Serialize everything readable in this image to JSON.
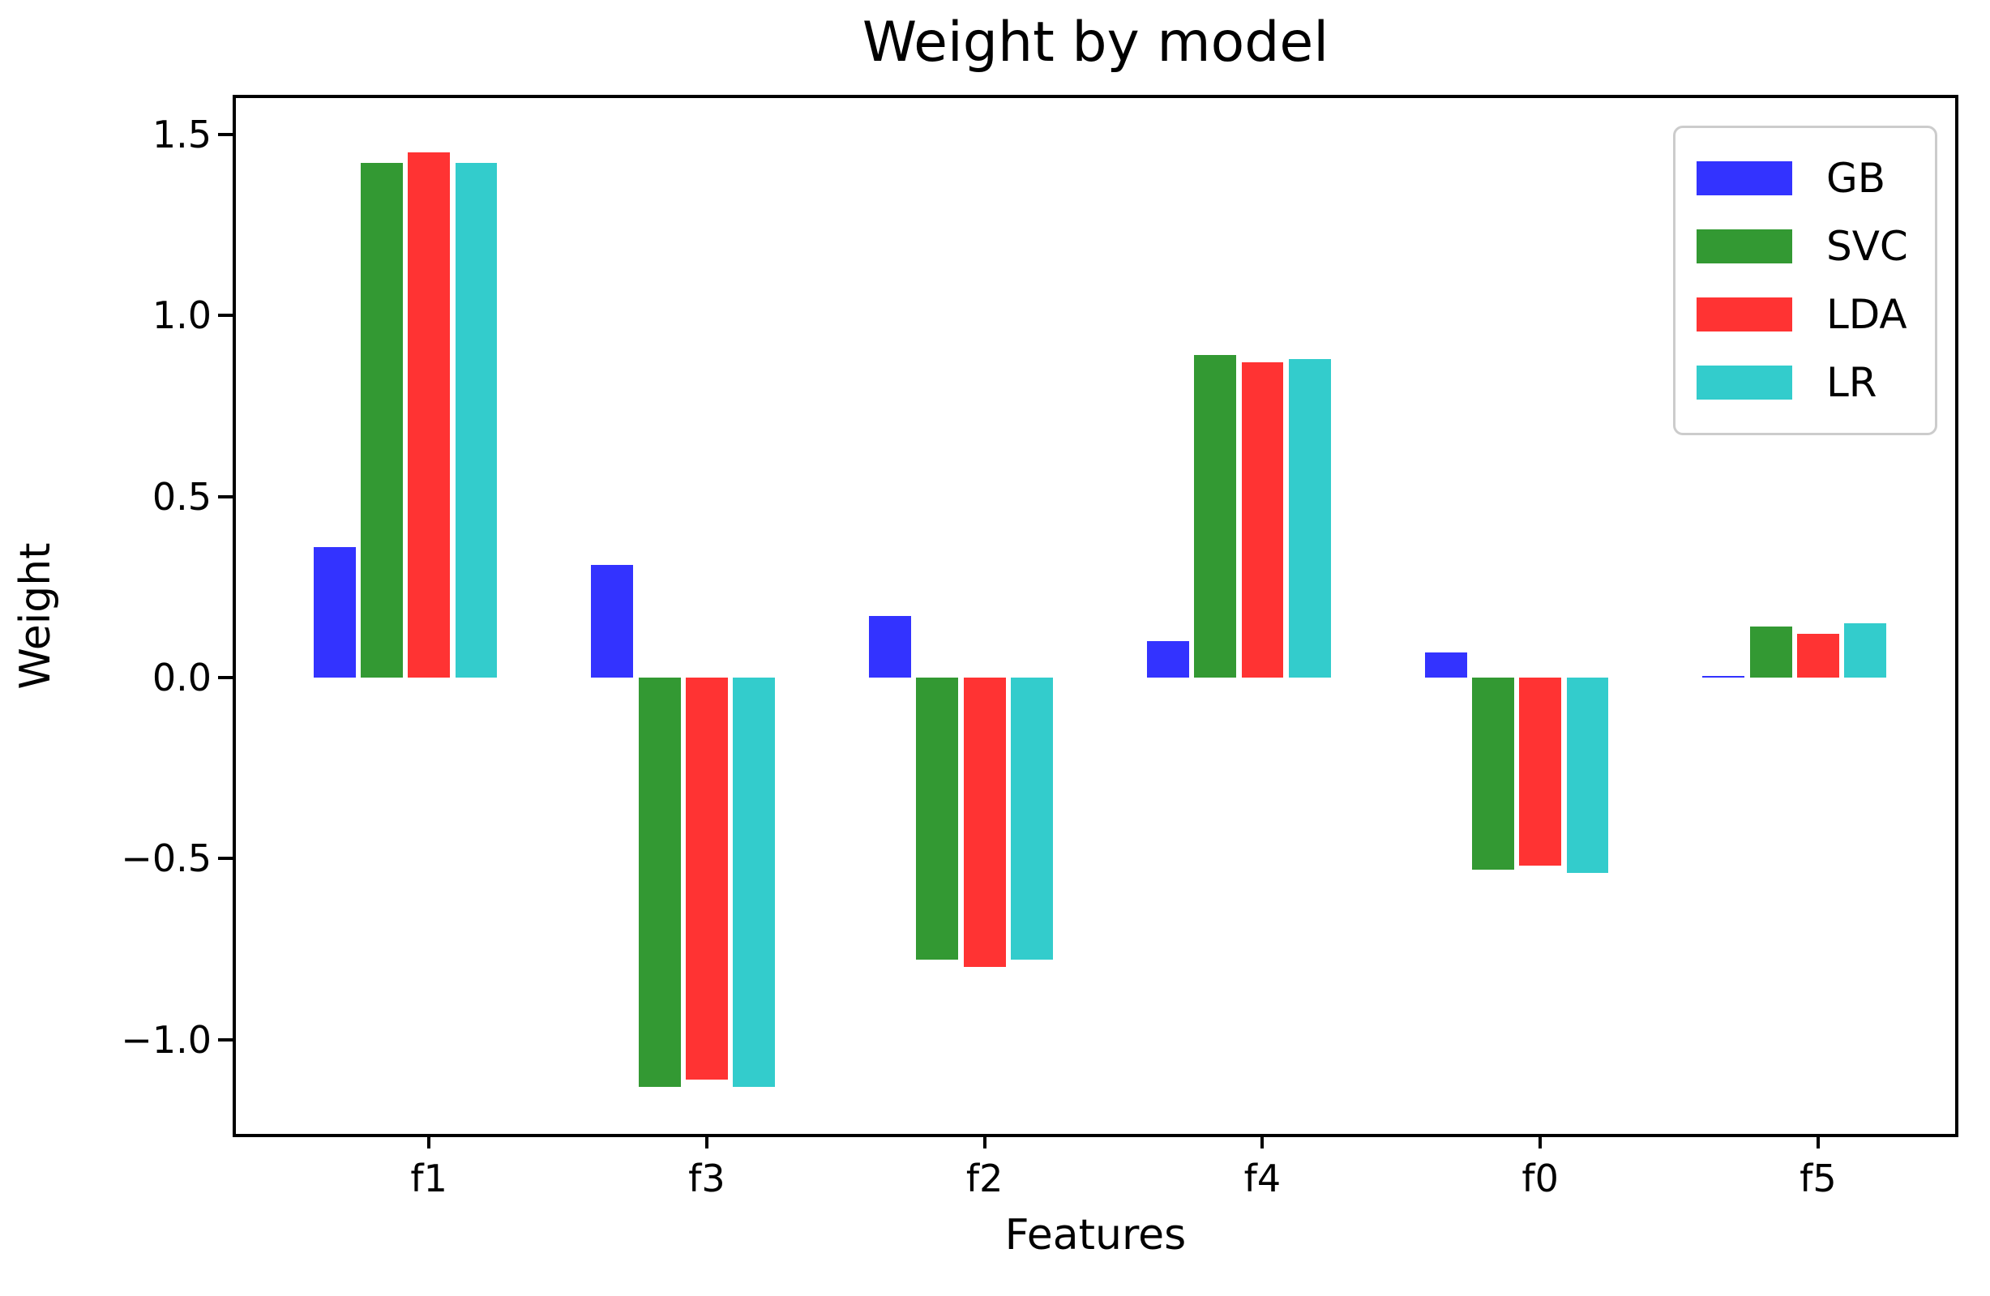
{
  "figure": {
    "background": "#ffffff",
    "text_color": "#000000"
  },
  "chart_data": {
    "type": "bar",
    "title": "Weight by model",
    "xlabel": "Features",
    "ylabel": "Weight",
    "categories": [
      "f1",
      "f3",
      "f2",
      "f4",
      "f0",
      "f5"
    ],
    "series": [
      {
        "name": "GB",
        "color": "#3333ff",
        "values": [
          0.36,
          0.31,
          0.17,
          0.1,
          0.07,
          0.005
        ]
      },
      {
        "name": "SVC",
        "color": "#339933",
        "values": [
          1.42,
          -1.13,
          -0.78,
          0.89,
          -0.53,
          0.14
        ]
      },
      {
        "name": "LDA",
        "color": "#ff3333",
        "values": [
          1.45,
          -1.11,
          -0.8,
          0.87,
          -0.52,
          0.12
        ]
      },
      {
        "name": "LR",
        "color": "#33cccc",
        "values": [
          1.42,
          -1.13,
          -0.78,
          0.88,
          -0.54,
          0.15
        ]
      }
    ],
    "ylim": [
      -1.26,
      1.6
    ],
    "yticks": [
      1.5,
      1.0,
      0.5,
      0.0,
      -0.5,
      -1.0
    ],
    "ytick_labels": [
      "1.5",
      "1.0",
      "0.5",
      "0.0",
      "−0.5",
      "−1.0"
    ],
    "grid": false,
    "legend": {
      "position": "upper right",
      "labels": [
        "GB",
        "SVC",
        "LDA",
        "LR"
      ]
    }
  }
}
